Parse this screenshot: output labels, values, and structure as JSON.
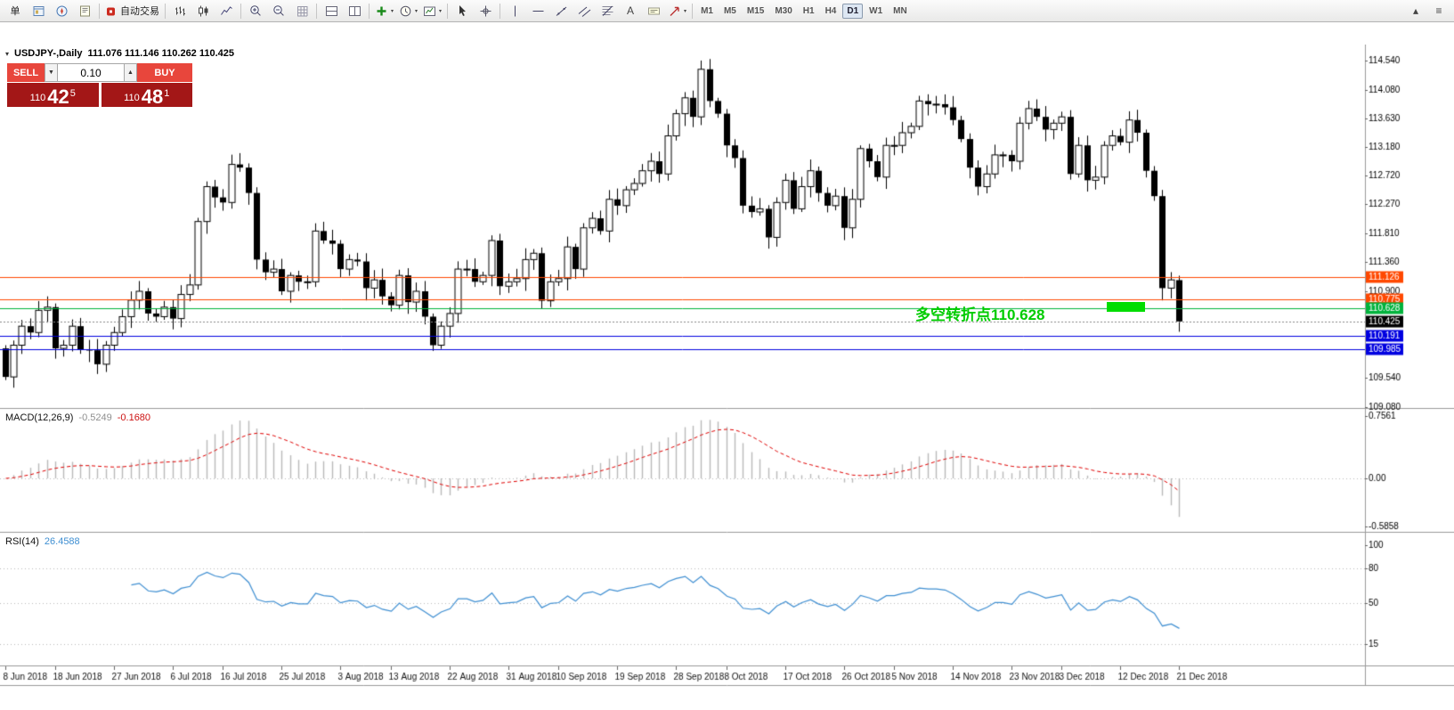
{
  "toolbar": {
    "caret_glyph": "▾",
    "groups": [
      [
        {
          "name": "new-order-button",
          "label": "单"
        },
        {
          "name": "market-watch-icon",
          "svg": "market-watch"
        },
        {
          "name": "navigator-icon",
          "svg": "navigator"
        },
        {
          "name": "data-window-icon",
          "svg": "data-window"
        }
      ],
      [
        {
          "name": "autotrading-button",
          "svg": "autotrading",
          "label": "自动交易"
        }
      ],
      [
        {
          "name": "bar-chart-icon",
          "svg": "bar-chart"
        },
        {
          "name": "candlestick-chart-icon",
          "svg": "candles"
        },
        {
          "name": "line-chart-icon",
          "svg": "line-chart"
        }
      ],
      [
        {
          "name": "zoom-in-icon",
          "svg": "zoom-in"
        },
        {
          "name": "zoom-out-icon",
          "svg": "zoom-out"
        },
        {
          "name": "grid-icon",
          "svg": "grid"
        }
      ],
      [
        {
          "name": "tile-windows-icon",
          "svg": "tile-h"
        },
        {
          "name": "cascade-windows-icon",
          "svg": "tile-v"
        }
      ],
      [
        {
          "name": "indicators-button",
          "svg": "indicators",
          "dropdown": true
        },
        {
          "name": "periods-button",
          "svg": "clock",
          "dropdown": true
        },
        {
          "name": "templates-button",
          "svg": "template",
          "dropdown": true
        }
      ],
      [
        {
          "name": "cursor-button",
          "svg": "cursor"
        },
        {
          "name": "crosshair-button",
          "svg": "crosshair"
        }
      ],
      [
        {
          "name": "vertical-line-button",
          "svg": "vline"
        },
        {
          "name": "horizontal-line-button",
          "svg": "hline"
        },
        {
          "name": "trendline-button",
          "svg": "trendline"
        },
        {
          "name": "channel-button",
          "svg": "channel"
        },
        {
          "name": "fibonacci-button",
          "svg": "fibo"
        },
        {
          "name": "text-button",
          "glyph": "A"
        },
        {
          "name": "text-label-button",
          "svg": "label"
        },
        {
          "name": "arrows-button",
          "svg": "arrows",
          "dropdown": true
        }
      ]
    ],
    "timeframes": {
      "items": [
        "M1",
        "M5",
        "M15",
        "M30",
        "H1",
        "H4",
        "D1",
        "W1",
        "MN"
      ],
      "active": "D1"
    },
    "right_icons": [
      {
        "name": "toolbar-scroll-up-icon",
        "glyph": "▴"
      },
      {
        "name": "toolbar-more-icon",
        "glyph": "≡"
      }
    ]
  },
  "chart": {
    "collapse_glyph": "▾",
    "title": "USDJPY-,Daily",
    "ohlc": "111.076 111.146 110.262 110.425",
    "trade_panel": {
      "sell_label": "SELL",
      "buy_label": "BUY",
      "volume": "0.10",
      "spin_down": "▼",
      "spin_up": "▲",
      "sell_price": {
        "prefix": "110",
        "big": "42",
        "sup": "5"
      },
      "buy_price": {
        "prefix": "110",
        "big": "48",
        "sup": "1"
      }
    },
    "annotation": {
      "text": "多空转折点110.628",
      "color": "#00cc00",
      "rect_color": "#00dd00"
    }
  },
  "chart_data": {
    "type": "candlestick",
    "symbol": "USDJPY-",
    "period": "Daily",
    "ylim": [
      109.06,
      114.79
    ],
    "y_ticks": [
      114.54,
      114.08,
      113.63,
      113.18,
      112.72,
      112.27,
      111.81,
      111.36,
      110.9,
      109.54,
      109.08
    ],
    "closes": [
      109.55,
      110.05,
      110.35,
      110.25,
      110.6,
      110.65,
      110,
      110.05,
      110.35,
      109.98,
      109.97,
      109.75,
      110.05,
      110.25,
      110.5,
      110.76,
      110.9,
      110.55,
      110.5,
      110.65,
      110.47,
      110.85,
      111,
      112,
      112.55,
      112.38,
      112.3,
      112.9,
      112.85,
      112.45,
      111.4,
      111.2,
      111.25,
      110.9,
      111.15,
      111.05,
      111.05,
      111.85,
      111.7,
      111.65,
      111.25,
      111.4,
      111.37,
      110.95,
      111.08,
      110.82,
      110.68,
      111.15,
      110.73,
      110.9,
      110.5,
      110.05,
      110.35,
      110.55,
      111.25,
      111.25,
      111.05,
      111.15,
      111.7,
      110.98,
      111.05,
      111.1,
      111.4,
      111.5,
      110.75,
      111.05,
      111.1,
      111.6,
      111.25,
      111.9,
      112.05,
      111.85,
      112.35,
      112.25,
      112.5,
      112.6,
      112.8,
      112.95,
      112.75,
      113.35,
      113.7,
      113.95,
      113.65,
      114.4,
      113.9,
      113.7,
      113.2,
      113,
      112.25,
      112.15,
      112.2,
      111.75,
      112.3,
      112.65,
      112.2,
      112.55,
      112.8,
      112.45,
      112.25,
      112.4,
      111.9,
      112.35,
      113.15,
      112.95,
      112.7,
      113.2,
      113.2,
      113.4,
      113.5,
      113.9,
      113.85,
      113.85,
      113.8,
      113.6,
      113.3,
      112.85,
      112.55,
      112.75,
      113.05,
      113.05,
      112.95,
      113.55,
      113.78,
      113.65,
      113.45,
      113.55,
      113.65,
      112.75,
      113.2,
      112.65,
      112.7,
      113.2,
      113.35,
      113.25,
      113.6,
      113.4,
      112.8,
      112.4,
      110.95,
      111.08,
      110.425
    ],
    "last_bar": {
      "open": 111.076,
      "high": 111.146,
      "low": 110.262,
      "close": 110.425
    },
    "date_ticks": [
      {
        "i": 0,
        "label": "8 Jun 2018"
      },
      {
        "i": 6,
        "label": "18 Jun 2018"
      },
      {
        "i": 13,
        "label": "27 Jun 2018"
      },
      {
        "i": 20,
        "label": "6 Jul 2018"
      },
      {
        "i": 26,
        "label": "16 Jul 2018"
      },
      {
        "i": 33,
        "label": "25 Jul 2018"
      },
      {
        "i": 40,
        "label": "3 Aug 2018"
      },
      {
        "i": 46,
        "label": "13 Aug 2018"
      },
      {
        "i": 53,
        "label": "22 Aug 2018"
      },
      {
        "i": 60,
        "label": "31 Aug 2018"
      },
      {
        "i": 66,
        "label": "10 Sep 2018"
      },
      {
        "i": 73,
        "label": "19 Sep 2018"
      },
      {
        "i": 80,
        "label": "28 Sep 2018"
      },
      {
        "i": 86,
        "label": "8 Oct 2018"
      },
      {
        "i": 93,
        "label": "17 Oct 2018"
      },
      {
        "i": 100,
        "label": "26 Oct 2018"
      },
      {
        "i": 106,
        "label": "5 Nov 2018"
      },
      {
        "i": 113,
        "label": "14 Nov 2018"
      },
      {
        "i": 120,
        "label": "23 Nov 2018"
      },
      {
        "i": 126,
        "label": "3 Dec 2018"
      },
      {
        "i": 133,
        "label": "12 Dec 2018"
      },
      {
        "i": 140,
        "label": "21 Dec 2018"
      }
    ],
    "hlines": [
      {
        "price": 111.126,
        "label": "111.126",
        "color": "#ff4800"
      },
      {
        "price": 110.775,
        "label": "110.775",
        "color": "#ff4800"
      },
      {
        "price": 110.628,
        "label": "110.628",
        "color": "#00b33c"
      },
      {
        "price": 110.191,
        "label": "110.191",
        "color": "#0000e0"
      },
      {
        "price": 109.985,
        "label": "109.985",
        "color": "#0000e0"
      }
    ],
    "bid_line": {
      "price": 110.425,
      "label": "110.425",
      "color": "#000000"
    },
    "indicators": {
      "macd": {
        "label": "MACD(12,26,9)",
        "main_value": "-0.5249",
        "signal_value": "-0.1680",
        "params": [
          12,
          26,
          9
        ],
        "axis_ticks": [
          {
            "v": 0.7561,
            "label": "0.7561"
          },
          {
            "v": 0,
            "label": "0.00"
          },
          {
            "v": -0.5858,
            "label": "-0.5858"
          }
        ],
        "hist_color": "#b9b9b9",
        "signal_color": "#e00000"
      },
      "rsi": {
        "label": "RSI(14)",
        "value": "26.4588",
        "period": 14,
        "axis_ticks": [
          {
            "v": 100,
            "label": "100"
          },
          {
            "v": 80,
            "label": "80"
          },
          {
            "v": 50,
            "label": "50"
          },
          {
            "v": 15,
            "label": "15"
          }
        ],
        "levels": [
          80,
          50,
          15
        ],
        "line_color": "#3f8fd2"
      }
    }
  }
}
